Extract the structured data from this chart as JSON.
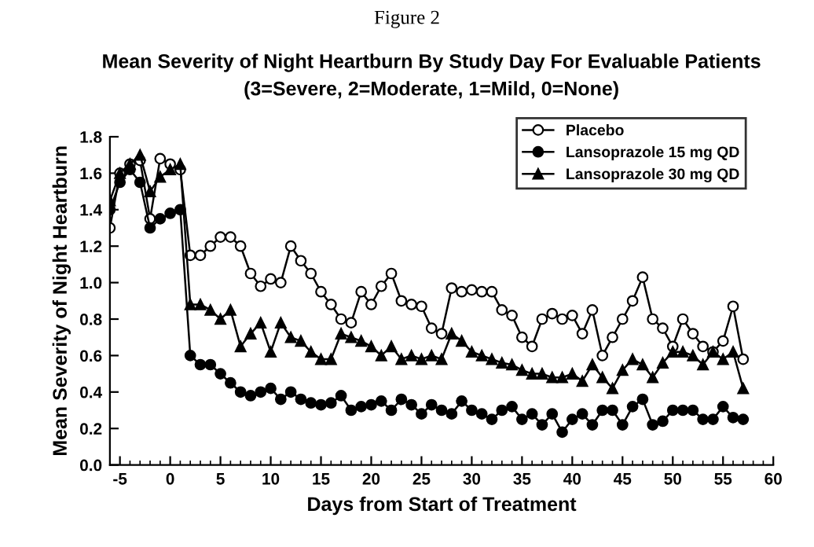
{
  "chart_data": {
    "type": "line",
    "title": "Mean Severity of Night Heartburn By Study Day For Evaluable Patients",
    "subtitle": "(3=Severe, 2=Moderate, 1=Mild, 0=None)",
    "annotations": [
      "Figure 2"
    ],
    "xlabel": "Days from Start of Treatment",
    "ylabel": "Mean Severity of Night Heartburn",
    "x": [
      -6,
      -5,
      -4,
      -3,
      -2,
      -1,
      0,
      1,
      2,
      3,
      4,
      5,
      6,
      7,
      8,
      9,
      10,
      11,
      12,
      13,
      14,
      15,
      16,
      17,
      18,
      19,
      20,
      21,
      22,
      23,
      24,
      25,
      26,
      27,
      28,
      29,
      30,
      31,
      32,
      33,
      34,
      35,
      36,
      37,
      38,
      39,
      40,
      41,
      42,
      43,
      44,
      45,
      46,
      47,
      48,
      49,
      50,
      51,
      52,
      53,
      54,
      55,
      56,
      57
    ],
    "series": [
      {
        "name": "Placebo",
        "color": "#000000",
        "marker": "circle",
        "values": [
          1.3,
          1.6,
          1.65,
          1.67,
          1.35,
          1.68,
          1.65,
          1.62,
          1.15,
          1.15,
          1.2,
          1.25,
          1.25,
          1.2,
          1.05,
          0.98,
          1.02,
          1.0,
          1.2,
          1.12,
          1.05,
          0.95,
          0.88,
          0.8,
          0.78,
          0.95,
          0.88,
          0.98,
          1.05,
          0.9,
          0.88,
          0.87,
          0.75,
          0.72,
          0.97,
          0.95,
          0.96,
          0.95,
          0.95,
          0.85,
          0.82,
          0.7,
          0.65,
          0.8,
          0.83,
          0.8,
          0.82,
          0.72,
          0.85,
          0.6,
          0.7,
          0.8,
          0.9,
          1.03,
          0.8,
          0.75,
          0.65,
          0.8,
          0.72,
          0.65,
          0.62,
          0.68,
          0.87,
          0.58
        ]
      },
      {
        "name": "Lansoprazole 15 mg QD",
        "color": "#000000",
        "marker": "circle",
        "values": [
          1.4,
          1.55,
          1.62,
          1.55,
          1.3,
          1.35,
          1.38,
          1.4,
          0.6,
          0.55,
          0.55,
          0.5,
          0.45,
          0.4,
          0.38,
          0.4,
          0.42,
          0.36,
          0.4,
          0.36,
          0.34,
          0.33,
          0.34,
          0.38,
          0.3,
          0.32,
          0.33,
          0.35,
          0.3,
          0.36,
          0.33,
          0.28,
          0.33,
          0.3,
          0.28,
          0.35,
          0.3,
          0.28,
          0.25,
          0.3,
          0.32,
          0.25,
          0.28,
          0.22,
          0.28,
          0.18,
          0.25,
          0.28,
          0.22,
          0.3,
          0.3,
          0.22,
          0.32,
          0.36,
          0.22,
          0.24,
          0.3,
          0.3,
          0.3,
          0.25,
          0.25,
          0.32,
          0.26,
          0.25
        ]
      },
      {
        "name": "Lansoprazole 30 mg QD",
        "color": "#000000",
        "marker": "triangle",
        "values": [
          1.45,
          1.6,
          1.65,
          1.7,
          1.5,
          1.58,
          1.62,
          1.65,
          0.88,
          0.88,
          0.85,
          0.8,
          0.85,
          0.65,
          0.72,
          0.78,
          0.62,
          0.78,
          0.7,
          0.68,
          0.62,
          0.58,
          0.58,
          0.72,
          0.7,
          0.68,
          0.65,
          0.6,
          0.65,
          0.58,
          0.6,
          0.58,
          0.6,
          0.58,
          0.72,
          0.68,
          0.62,
          0.6,
          0.58,
          0.56,
          0.55,
          0.52,
          0.5,
          0.5,
          0.48,
          0.48,
          0.5,
          0.46,
          0.55,
          0.48,
          0.42,
          0.52,
          0.58,
          0.55,
          0.48,
          0.56,
          0.62,
          0.62,
          0.6,
          0.55,
          0.62,
          0.58,
          0.62,
          0.42
        ]
      }
    ],
    "xlim": [
      -6,
      60
    ],
    "xticks": [
      -5,
      0,
      5,
      10,
      15,
      20,
      25,
      30,
      35,
      40,
      45,
      50,
      55,
      60
    ],
    "ylim": [
      0,
      1.8
    ],
    "yticks": [
      {
        "value": 0,
        "label": "0.0"
      },
      {
        "value": 0.2,
        "label": "0.2"
      },
      {
        "value": 0.4,
        "label": "0.4"
      },
      {
        "value": 0.6,
        "label": "0.6"
      },
      {
        "value": 0.8,
        "label": "0.8"
      },
      {
        "value": 1.0,
        "label": "1.0"
      },
      {
        "value": 1.2,
        "label": "1.2"
      },
      {
        "value": 1.4,
        "label": "1.4"
      },
      {
        "value": 1.6,
        "label": "1.6"
      },
      {
        "value": 1.8,
        "label": "1.8"
      }
    ],
    "grid": false,
    "legend": "top right",
    "line_style": "solid"
  }
}
